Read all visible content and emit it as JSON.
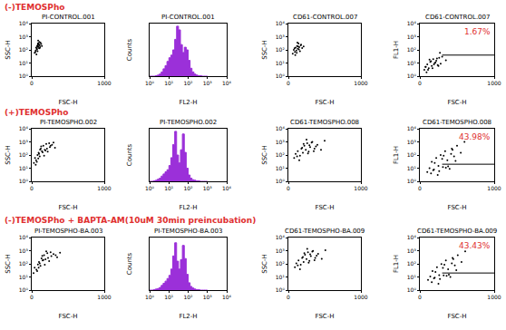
{
  "row_labels": [
    "(-)TEMOSPho",
    "(+)TEMOSPho",
    "(-)TEMOSPho + BAPTA-AM(10uM 30min preincubation)"
  ],
  "chart_data": [
    {
      "type": "scatter",
      "title": "PI-CONTROL.001",
      "xlabel": "FSC-H",
      "ylabel": "SSC-H",
      "log": "y",
      "grid": false,
      "color": "#000000",
      "marker": "dot",
      "xlim": [
        0,
        1000
      ],
      "xticks": [
        0,
        1000
      ],
      "ylim": [
        1,
        10000
      ],
      "yticks": [
        {
          "value": 1,
          "label": "10⁰"
        },
        {
          "value": 10,
          "label": "10¹"
        },
        {
          "value": 100,
          "label": "10²"
        },
        {
          "value": 1000,
          "label": "10³"
        },
        {
          "value": 10000,
          "label": "10⁴"
        }
      ],
      "x": [
        40,
        55,
        60,
        70,
        75,
        80,
        85,
        90,
        95,
        100,
        105,
        110,
        115,
        120,
        65,
        72,
        88,
        98,
        108,
        130,
        50,
        78,
        92,
        140,
        84
      ],
      "values": [
        60,
        90,
        150,
        120,
        200,
        80,
        300,
        180,
        250,
        140,
        400,
        220,
        160,
        350,
        45,
        110,
        500,
        260,
        130,
        280,
        70,
        170,
        320,
        200,
        240
      ]
    },
    {
      "type": "histogram",
      "title": "PI-CONTROL.001",
      "xlabel": "FL2-H",
      "ylabel": "Counts",
      "log": "x",
      "grid": false,
      "color": "#9b30d9",
      "tick_labels": "x",
      "xlim": [
        1,
        10000
      ],
      "ylim": [
        0,
        100
      ],
      "xticks": [
        {
          "value": 1,
          "label": "10⁰"
        },
        {
          "value": 10,
          "label": "10¹"
        },
        {
          "value": 100,
          "label": "10²"
        },
        {
          "value": 1000,
          "label": "10³"
        },
        {
          "value": 10000,
          "label": "10⁴"
        }
      ],
      "bins": [
        1,
        1.26,
        1.58,
        2,
        2.51,
        3.16,
        3.98,
        5.01,
        6.31,
        7.94,
        10,
        12.6,
        15.8,
        20,
        25.1,
        31.6,
        39.8,
        50.1,
        63.1,
        79.4,
        100,
        126,
        158,
        200,
        251,
        316,
        398,
        501,
        631,
        794,
        1000
      ],
      "counts": [
        0,
        0,
        0,
        1,
        2,
        4,
        8,
        14,
        20,
        28,
        35,
        40,
        50,
        70,
        95,
        88,
        60,
        45,
        55,
        50,
        30,
        15,
        8,
        4,
        2,
        1,
        1,
        0,
        0,
        0
      ]
    },
    {
      "type": "scatter",
      "title": "CD61-CONTROL.007",
      "xlabel": "FSC-H",
      "ylabel": "SSC-H",
      "log": "y",
      "grid": false,
      "color": "#000000",
      "marker": "dot",
      "xlim": [
        0,
        1000
      ],
      "xticks": [
        0,
        1000
      ],
      "ylim": [
        1,
        10000
      ],
      "yticks": [
        {
          "value": 1,
          "label": "10⁰"
        },
        {
          "value": 10,
          "label": "10¹"
        },
        {
          "value": 100,
          "label": "10²"
        },
        {
          "value": 1000,
          "label": "10³"
        },
        {
          "value": 10000,
          "label": "10⁴"
        }
      ],
      "x": [
        60,
        75,
        90,
        100,
        110,
        120,
        130,
        140,
        150,
        160,
        175,
        190,
        210,
        95,
        125,
        145,
        115,
        170,
        85,
        135
      ],
      "values": [
        50,
        100,
        70,
        150,
        90,
        200,
        120,
        300,
        160,
        80,
        250,
        140,
        180,
        40,
        350,
        110,
        60,
        220,
        130,
        180
      ]
    },
    {
      "type": "scatter",
      "title": "CD61-CONTROL.007",
      "xlabel": "FSC-H",
      "ylabel": "FL1-H",
      "log": "y",
      "grid": false,
      "color": "#000000",
      "marker": "dot",
      "annotation": "1.67%",
      "gate": {
        "x": [
          300,
          1000
        ],
        "y": 40
      },
      "xlim": [
        0,
        1000
      ],
      "xticks": [
        0,
        1000
      ],
      "ylim": [
        1,
        10000
      ],
      "yticks": [
        {
          "value": 1,
          "label": "10⁰"
        },
        {
          "value": 10,
          "label": "10¹"
        },
        {
          "value": 100,
          "label": "10²"
        },
        {
          "value": 1000,
          "label": "10³"
        },
        {
          "value": 10000,
          "label": "10⁴"
        }
      ],
      "x": [
        60,
        80,
        100,
        120,
        140,
        160,
        180,
        200,
        220,
        240,
        260,
        280,
        300,
        90,
        130,
        170,
        210,
        250,
        110,
        150,
        190,
        230,
        270,
        75,
        350
      ],
      "values": [
        3,
        5,
        8,
        4,
        12,
        6,
        20,
        10,
        15,
        7,
        25,
        9,
        30,
        2,
        18,
        4,
        11,
        6,
        3,
        14,
        8,
        22,
        60,
        5,
        16
      ]
    },
    {
      "type": "scatter",
      "title": "PI-TEMOSPHO.002",
      "xlabel": "FSC-H",
      "ylabel": "SSC-H",
      "log": "y",
      "grid": false,
      "color": "#000000",
      "marker": "dot",
      "xlim": [
        0,
        1000
      ],
      "xticks": [
        0,
        1000
      ],
      "ylim": [
        1,
        10000
      ],
      "yticks": [
        {
          "value": 1,
          "label": "10⁰"
        },
        {
          "value": 10,
          "label": "10¹"
        },
        {
          "value": 100,
          "label": "10²"
        },
        {
          "value": 1000,
          "label": "10³"
        },
        {
          "value": 10000,
          "label": "10⁴"
        }
      ],
      "x": [
        30,
        45,
        60,
        80,
        95,
        110,
        125,
        140,
        160,
        180,
        200,
        220,
        250,
        280,
        320,
        70,
        100,
        130,
        170,
        210,
        240,
        90,
        150,
        190,
        260,
        55,
        115,
        300
      ],
      "values": [
        25,
        60,
        40,
        100,
        150,
        80,
        300,
        200,
        500,
        250,
        700,
        180,
        400,
        600,
        350,
        30,
        120,
        450,
        90,
        300,
        800,
        55,
        160,
        220,
        500,
        18,
        260,
        900
      ]
    },
    {
      "type": "histogram",
      "title": "PI-TEMOSPHO.002",
      "xlabel": "FL2-H",
      "ylabel": "Counts",
      "log": "x",
      "grid": false,
      "color": "#9b30d9",
      "tick_labels": "x",
      "xlim": [
        1,
        10000
      ],
      "ylim": [
        0,
        100
      ],
      "xticks": [
        {
          "value": 1,
          "label": "10⁰"
        },
        {
          "value": 10,
          "label": "10¹"
        },
        {
          "value": 100,
          "label": "10²"
        },
        {
          "value": 1000,
          "label": "10³"
        },
        {
          "value": 10000,
          "label": "10⁴"
        }
      ],
      "bins": [
        1,
        1.26,
        1.58,
        2,
        2.51,
        3.16,
        3.98,
        5.01,
        6.31,
        7.94,
        10,
        12.6,
        15.8,
        20,
        25.1,
        31.6,
        39.8,
        50.1,
        63.1,
        79.4,
        100,
        126,
        158,
        200,
        251,
        316,
        398,
        501,
        631,
        794,
        1000
      ],
      "counts": [
        0,
        0,
        1,
        2,
        4,
        6,
        10,
        14,
        18,
        22,
        30,
        45,
        70,
        95,
        50,
        35,
        60,
        90,
        55,
        25,
        12,
        6,
        3,
        2,
        1,
        1,
        0,
        0,
        0,
        0
      ]
    },
    {
      "type": "scatter",
      "title": "CD61-TEMOSPHO.008",
      "xlabel": "FSC-H",
      "ylabel": "SSC-H",
      "log": "y",
      "grid": false,
      "color": "#000000",
      "marker": "dot",
      "xlim": [
        0,
        1000
      ],
      "xticks": [
        0,
        1000
      ],
      "ylim": [
        1,
        10000
      ],
      "yticks": [
        {
          "value": 1,
          "label": "10⁰"
        },
        {
          "value": 10,
          "label": "10¹"
        },
        {
          "value": 100,
          "label": "10²"
        },
        {
          "value": 1000,
          "label": "10³"
        },
        {
          "value": 10000,
          "label": "10⁴"
        }
      ],
      "x": [
        80,
        100,
        130,
        160,
        180,
        200,
        220,
        240,
        260,
        280,
        300,
        330,
        360,
        400,
        450,
        500,
        150,
        210,
        270,
        320,
        380,
        190,
        250,
        350,
        120,
        290
      ],
      "values": [
        60,
        120,
        200,
        90,
        300,
        150,
        500,
        250,
        800,
        180,
        400,
        1000,
        300,
        600,
        250,
        1200,
        40,
        700,
        130,
        900,
        450,
        350,
        1500,
        200,
        80,
        550
      ]
    },
    {
      "type": "scatter",
      "title": "CD61-TEMOSPHO.008",
      "xlabel": "FSC-H",
      "ylabel": "FL1-H",
      "log": "y",
      "grid": false,
      "color": "#000000",
      "marker": "dot",
      "annotation": "43.98%",
      "gate": {
        "x": [
          300,
          1000
        ],
        "y": 20
      },
      "xlim": [
        0,
        1000
      ],
      "xticks": [
        0,
        1000
      ],
      "ylim": [
        1,
        10000
      ],
      "yticks": [
        {
          "value": 1,
          "label": "10⁰"
        },
        {
          "value": 10,
          "label": "10¹"
        },
        {
          "value": 100,
          "label": "10²"
        },
        {
          "value": 1000,
          "label": "10³"
        },
        {
          "value": 10000,
          "label": "10⁴"
        }
      ],
      "x": [
        100,
        130,
        160,
        190,
        220,
        250,
        280,
        310,
        340,
        370,
        400,
        430,
        460,
        500,
        550,
        600,
        150,
        200,
        260,
        320,
        380,
        440,
        240,
        300,
        350,
        420,
        180,
        480
      ],
      "values": [
        5,
        10,
        30,
        8,
        60,
        15,
        100,
        12,
        200,
        40,
        9,
        300,
        80,
        500,
        150,
        1000,
        4,
        25,
        6,
        90,
        14,
        250,
        3,
        50,
        11,
        120,
        7,
        35
      ]
    },
    {
      "type": "scatter",
      "title": "PI-TEMOSPHO-BA.003",
      "xlabel": "FSC-H",
      "ylabel": "SSC-H",
      "log": "y",
      "grid": false,
      "color": "#000000",
      "marker": "dot",
      "xlim": [
        0,
        1000
      ],
      "xticks": [
        0,
        1000
      ],
      "ylim": [
        1,
        10000
      ],
      "yticks": [
        {
          "value": 1,
          "label": "10⁰"
        },
        {
          "value": 10,
          "label": "10¹"
        },
        {
          "value": 100,
          "label": "10²"
        },
        {
          "value": 1000,
          "label": "10³"
        },
        {
          "value": 10000,
          "label": "10⁴"
        }
      ],
      "x": [
        25,
        40,
        65,
        85,
        100,
        120,
        135,
        150,
        170,
        190,
        215,
        240,
        270,
        300,
        350,
        390,
        75,
        110,
        145,
        180,
        225,
        260,
        95,
        160,
        200,
        330
      ],
      "values": [
        20,
        50,
        35,
        90,
        140,
        70,
        260,
        180,
        450,
        220,
        650,
        160,
        380,
        550,
        320,
        700,
        28,
        110,
        400,
        85,
        280,
        750,
        50,
        200,
        900,
        450
      ]
    },
    {
      "type": "histogram",
      "title": "PI-TEMOSPHO-BA.003",
      "xlabel": "FL2-H",
      "ylabel": "Counts",
      "log": "x",
      "grid": false,
      "color": "#9b30d9",
      "tick_labels": "x",
      "xlim": [
        1,
        10000
      ],
      "ylim": [
        0,
        100
      ],
      "xticks": [
        {
          "value": 1,
          "label": "10⁰"
        },
        {
          "value": 10,
          "label": "10¹"
        },
        {
          "value": 100,
          "label": "10²"
        },
        {
          "value": 1000,
          "label": "10³"
        },
        {
          "value": 10000,
          "label": "10⁴"
        }
      ],
      "bins": [
        1,
        1.26,
        1.58,
        2,
        2.51,
        3.16,
        3.98,
        5.01,
        6.31,
        7.94,
        10,
        12.6,
        15.8,
        20,
        25.1,
        31.6,
        39.8,
        50.1,
        63.1,
        79.4,
        100,
        126,
        158,
        200,
        251,
        316,
        398,
        501,
        631,
        794,
        1000
      ],
      "counts": [
        0,
        0,
        1,
        2,
        3,
        5,
        9,
        13,
        17,
        22,
        28,
        40,
        65,
        90,
        55,
        40,
        58,
        85,
        60,
        30,
        14,
        7,
        4,
        2,
        1,
        1,
        0,
        0,
        0,
        0
      ]
    },
    {
      "type": "scatter",
      "title": "CD61-TEMOSPHO-BA.009",
      "xlabel": "FSC-H",
      "ylabel": "SSC-H",
      "log": "y",
      "grid": false,
      "color": "#000000",
      "marker": "dot",
      "xlim": [
        0,
        1000
      ],
      "xticks": [
        0,
        1000
      ],
      "ylim": [
        1,
        10000
      ],
      "yticks": [
        {
          "value": 1,
          "label": "10⁰"
        },
        {
          "value": 10,
          "label": "10¹"
        },
        {
          "value": 100,
          "label": "10²"
        },
        {
          "value": 1000,
          "label": "10³"
        },
        {
          "value": 10000,
          "label": "10⁴"
        }
      ],
      "x": [
        90,
        110,
        140,
        170,
        190,
        210,
        230,
        250,
        270,
        290,
        310,
        340,
        370,
        410,
        460,
        510,
        160,
        220,
        280,
        330,
        390,
        200,
        260,
        360,
        130,
        300
      ],
      "values": [
        55,
        110,
        180,
        85,
        280,
        140,
        480,
        230,
        750,
        170,
        380,
        950,
        280,
        580,
        240,
        1100,
        38,
        650,
        120,
        850,
        420,
        330,
        1400,
        190,
        75,
        520
      ]
    },
    {
      "type": "scatter",
      "title": "CD61-TEMOSPHO-BA.009",
      "xlabel": "FSC-H",
      "ylabel": "FL1-H",
      "log": "y",
      "grid": false,
      "color": "#000000",
      "marker": "dot",
      "annotation": "43.43%",
      "gate": {
        "x": [
          300,
          1000
        ],
        "y": 20
      },
      "xlim": [
        0,
        1000
      ],
      "xticks": [
        0,
        1000
      ],
      "ylim": [
        1,
        10000
      ],
      "yticks": [
        {
          "value": 1,
          "label": "10⁰"
        },
        {
          "value": 10,
          "label": "10¹"
        },
        {
          "value": 100,
          "label": "10²"
        },
        {
          "value": 1000,
          "label": "10³"
        },
        {
          "value": 10000,
          "label": "10⁴"
        }
      ],
      "x": [
        110,
        140,
        170,
        200,
        230,
        260,
        290,
        320,
        350,
        380,
        410,
        440,
        470,
        510,
        560,
        610,
        160,
        210,
        270,
        330,
        390,
        450,
        250,
        310,
        360,
        430,
        190,
        490
      ],
      "values": [
        6,
        11,
        28,
        9,
        55,
        14,
        95,
        13,
        180,
        38,
        10,
        280,
        75,
        450,
        140,
        900,
        4,
        24,
        7,
        85,
        15,
        230,
        3,
        48,
        12,
        110,
        8,
        33
      ]
    }
  ]
}
